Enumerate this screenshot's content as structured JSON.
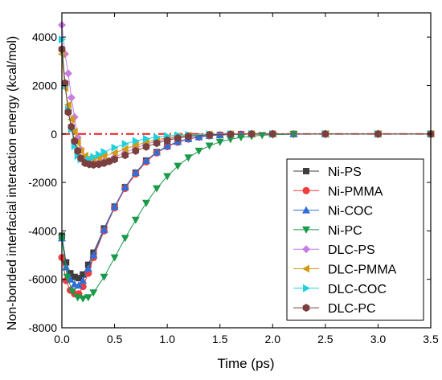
{
  "chart_data": {
    "type": "scatter",
    "xlabel": "Time (ps)",
    "ylabel": "Non-bonded interfacial interaction energy (kcal/mol)",
    "xlim": [
      0,
      3.5
    ],
    "ylim": [
      -8000,
      5000
    ],
    "x_ticks": [
      "0.0",
      "0.5",
      "1.0",
      "1.5",
      "2.0",
      "2.5",
      "3.0",
      "3.5"
    ],
    "y_ticks": [
      "-8000",
      "-6000",
      "-4000",
      "-2000",
      "0",
      "2000",
      "4000"
    ],
    "x_tick_values": [
      0,
      0.5,
      1.0,
      1.5,
      2.0,
      2.5,
      3.0,
      3.5
    ],
    "y_tick_values": [
      -8000,
      -6000,
      -4000,
      -2000,
      0,
      2000,
      4000
    ],
    "legend_position": "right",
    "reference_line": {
      "y": 0,
      "style": "dash-dot",
      "color": "#e41a1c"
    },
    "series": [
      {
        "name": "Ni-PS",
        "marker": "square",
        "color": "#3d3d3d",
        "x": [
          0.0,
          0.04,
          0.08,
          0.12,
          0.16,
          0.2,
          0.25,
          0.3,
          0.4,
          0.5,
          0.6,
          0.7,
          0.8,
          0.9,
          1.0,
          1.1,
          1.2,
          1.3,
          1.4,
          1.5,
          1.6,
          1.7,
          1.8,
          2.0,
          2.2,
          2.5,
          3.0,
          3.5
        ],
        "y": [
          -4200,
          -5300,
          -5750,
          -5900,
          -5950,
          -5800,
          -5400,
          -4900,
          -3900,
          -3000,
          -2200,
          -1600,
          -1100,
          -750,
          -500,
          -320,
          -200,
          -120,
          -70,
          -40,
          -20,
          -10,
          -5,
          0,
          0,
          0,
          0,
          0
        ]
      },
      {
        "name": "Ni-PMMA",
        "marker": "circle",
        "color": "#f03c3c",
        "x": [
          0.0,
          0.04,
          0.08,
          0.12,
          0.16,
          0.2,
          0.25,
          0.3,
          0.4,
          0.5,
          0.6,
          0.7,
          0.8,
          0.9,
          1.0,
          1.1,
          1.2,
          1.3,
          1.4,
          1.5,
          1.6,
          1.7,
          1.8,
          2.0,
          2.2,
          2.5,
          3.0,
          3.5
        ],
        "y": [
          -5100,
          -6050,
          -6450,
          -6600,
          -6600,
          -6300,
          -5750,
          -5100,
          -4000,
          -3050,
          -2250,
          -1650,
          -1150,
          -780,
          -520,
          -340,
          -210,
          -130,
          -75,
          -40,
          -20,
          -10,
          -5,
          0,
          0,
          0,
          0,
          0
        ]
      },
      {
        "name": "Ni-COC",
        "marker": "triangle-up",
        "color": "#2f6fd8",
        "x": [
          0.0,
          0.04,
          0.08,
          0.12,
          0.16,
          0.2,
          0.25,
          0.3,
          0.4,
          0.5,
          0.6,
          0.7,
          0.8,
          0.9,
          1.0,
          1.1,
          1.2,
          1.3,
          1.4,
          1.5,
          1.6,
          1.7,
          1.8,
          2.0,
          2.2,
          2.5,
          3.0,
          3.5
        ],
        "y": [
          -4300,
          -5500,
          -6000,
          -6200,
          -6250,
          -6050,
          -5550,
          -5000,
          -3950,
          -3000,
          -2200,
          -1600,
          -1100,
          -750,
          -500,
          -320,
          -200,
          -120,
          -70,
          -40,
          -20,
          -10,
          -5,
          0,
          0,
          0,
          0,
          0
        ]
      },
      {
        "name": "Ni-PC",
        "marker": "triangle-down",
        "color": "#1a9a4a",
        "x": [
          0.0,
          0.05,
          0.1,
          0.15,
          0.2,
          0.25,
          0.3,
          0.4,
          0.5,
          0.6,
          0.7,
          0.8,
          0.9,
          1.0,
          1.1,
          1.2,
          1.3,
          1.4,
          1.5,
          1.6,
          1.7,
          1.8,
          1.9,
          2.0,
          2.2,
          2.5,
          3.0,
          3.5
        ],
        "y": [
          -4300,
          -5900,
          -6500,
          -6750,
          -6800,
          -6750,
          -6550,
          -5900,
          -5100,
          -4300,
          -3550,
          -2850,
          -2250,
          -1750,
          -1320,
          -980,
          -700,
          -490,
          -330,
          -220,
          -140,
          -90,
          -55,
          -30,
          -10,
          0,
          0,
          0
        ]
      },
      {
        "name": "DLC-PS",
        "marker": "diamond",
        "color": "#c77ee0",
        "x": [
          0.0,
          0.03,
          0.06,
          0.09,
          0.12,
          0.15,
          0.18,
          0.22,
          0.26,
          0.3,
          0.35,
          0.4,
          0.5,
          0.6,
          0.7,
          0.8,
          0.9,
          1.0,
          1.1,
          1.2,
          1.4,
          1.6,
          1.8,
          2.0,
          2.5,
          3.0,
          3.5
        ],
        "y": [
          4500,
          3300,
          2500,
          1500,
          700,
          -150,
          -650,
          -1000,
          -1150,
          -1200,
          -1180,
          -1120,
          -950,
          -760,
          -580,
          -420,
          -300,
          -200,
          -130,
          -80,
          -30,
          -10,
          0,
          0,
          0,
          0,
          0
        ]
      },
      {
        "name": "DLC-PMMA",
        "marker": "triangle-left",
        "color": "#d39a14",
        "x": [
          0.0,
          0.03,
          0.06,
          0.09,
          0.12,
          0.15,
          0.18,
          0.22,
          0.26,
          0.3,
          0.35,
          0.4,
          0.5,
          0.6,
          0.7,
          0.8,
          0.9,
          1.0,
          1.1,
          1.2,
          1.4,
          1.6,
          1.8,
          2.0,
          2.5,
          3.0,
          3.5
        ],
        "y": [
          3300,
          1900,
          1200,
          600,
          100,
          -350,
          -700,
          -900,
          -1000,
          -1000,
          -980,
          -920,
          -780,
          -620,
          -470,
          -340,
          -240,
          -160,
          -100,
          -60,
          -20,
          -5,
          0,
          0,
          0,
          0,
          0
        ]
      },
      {
        "name": "DLC-COC",
        "marker": "triangle-right",
        "color": "#1fd0e0",
        "x": [
          0.0,
          0.03,
          0.06,
          0.09,
          0.12,
          0.15,
          0.18,
          0.22,
          0.26,
          0.3,
          0.35,
          0.4,
          0.5,
          0.6,
          0.7,
          0.8,
          0.9,
          1.0,
          1.1,
          1.2,
          1.4,
          1.6,
          1.8,
          2.0,
          2.5,
          3.0,
          3.5
        ],
        "y": [
          3900,
          2000,
          1000,
          200,
          -500,
          -900,
          -1050,
          -1100,
          -1050,
          -950,
          -850,
          -740,
          -560,
          -410,
          -290,
          -200,
          -130,
          -80,
          -50,
          -30,
          -10,
          0,
          0,
          0,
          0,
          0,
          0
        ]
      },
      {
        "name": "DLC-PC",
        "marker": "hexagon",
        "color": "#7a3f3f",
        "x": [
          0.0,
          0.03,
          0.06,
          0.09,
          0.12,
          0.15,
          0.18,
          0.22,
          0.26,
          0.3,
          0.35,
          0.4,
          0.45,
          0.5,
          0.6,
          0.7,
          0.8,
          0.9,
          1.0,
          1.1,
          1.2,
          1.4,
          1.6,
          1.8,
          2.0,
          2.5,
          3.0,
          3.5
        ],
        "y": [
          3500,
          2100,
          900,
          300,
          -300,
          -700,
          -1000,
          -1200,
          -1250,
          -1270,
          -1250,
          -1200,
          -1130,
          -1050,
          -880,
          -700,
          -530,
          -380,
          -260,
          -170,
          -100,
          -35,
          -10,
          0,
          0,
          0,
          0,
          0
        ]
      }
    ]
  }
}
